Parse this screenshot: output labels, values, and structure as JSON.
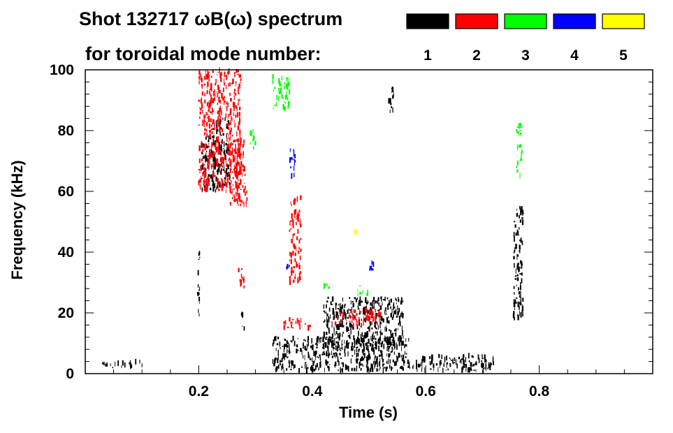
{
  "chart_data": {
    "type": "scatter",
    "title": "Shot 132717 ωB(ω) spectrum",
    "subtitle": "for toroidal mode number:",
    "xlabel": "Time (s)",
    "ylabel": "Frequency (kHz)",
    "xlim": [
      0.0,
      1.0
    ],
    "ylim": [
      0,
      100
    ],
    "x_ticks": [
      "0.2",
      "0.4",
      "0.6",
      "0.8"
    ],
    "x_tick_values": [
      0.2,
      0.4,
      0.6,
      0.8
    ],
    "y_ticks": [
      "0",
      "20",
      "40",
      "60",
      "80",
      "100"
    ],
    "y_tick_values": [
      0,
      20,
      40,
      60,
      80,
      100
    ],
    "grid": false,
    "legend_placement": "top-right",
    "legend": [
      {
        "label": "1",
        "color": "#000000"
      },
      {
        "label": "2",
        "color": "#ff0000"
      },
      {
        "label": "3",
        "color": "#00ff00"
      },
      {
        "label": "4",
        "color": "#0000ff"
      },
      {
        "label": "5",
        "color": "#ffff00"
      }
    ],
    "series": [
      {
        "mode": 1,
        "color": "#000000",
        "features": [
          {
            "t0": 0.205,
            "t1": 0.225,
            "f0": 60,
            "f1": 78
          },
          {
            "t0": 0.225,
            "t1": 0.255,
            "f0": 60,
            "f1": 84
          },
          {
            "t0": 0.198,
            "t1": 0.202,
            "f0": 17,
            "f1": 40
          },
          {
            "t0": 0.275,
            "t1": 0.282,
            "f0": 14,
            "f1": 20
          },
          {
            "t0": 0.33,
            "t1": 0.57,
            "f0": 1,
            "f1": 12
          },
          {
            "t0": 0.57,
            "t1": 0.72,
            "f0": 1,
            "f1": 6
          },
          {
            "t0": 0.42,
            "t1": 0.56,
            "f0": 8,
            "f1": 25
          },
          {
            "t0": 0.755,
            "t1": 0.772,
            "f0": 18,
            "f1": 55
          },
          {
            "t0": 0.03,
            "t1": 0.1,
            "f0": 2,
            "f1": 4
          },
          {
            "t0": 0.535,
            "t1": 0.545,
            "f0": 86,
            "f1": 94
          }
        ]
      },
      {
        "mode": 2,
        "color": "#ff0000",
        "features": [
          {
            "t0": 0.2,
            "t1": 0.275,
            "f0": 60,
            "f1": 100
          },
          {
            "t0": 0.255,
            "t1": 0.285,
            "f0": 55,
            "f1": 77
          },
          {
            "t0": 0.27,
            "t1": 0.28,
            "f0": 28,
            "f1": 36
          },
          {
            "t0": 0.36,
            "t1": 0.38,
            "f0": 30,
            "f1": 58
          },
          {
            "t0": 0.35,
            "t1": 0.4,
            "f0": 15,
            "f1": 18
          },
          {
            "t0": 0.44,
            "t1": 0.52,
            "f0": 16,
            "f1": 21
          }
        ]
      },
      {
        "mode": 3,
        "color": "#00ff00",
        "features": [
          {
            "t0": 0.33,
            "t1": 0.36,
            "f0": 87,
            "f1": 98
          },
          {
            "t0": 0.48,
            "t1": 0.5,
            "f0": 26,
            "f1": 29
          },
          {
            "t0": 0.76,
            "t1": 0.77,
            "f0": 65,
            "f1": 82
          },
          {
            "t0": 0.29,
            "t1": 0.3,
            "f0": 74,
            "f1": 80
          },
          {
            "t0": 0.42,
            "t1": 0.43,
            "f0": 28,
            "f1": 30
          }
        ]
      },
      {
        "mode": 4,
        "color": "#0000ff",
        "features": [
          {
            "t0": 0.36,
            "t1": 0.37,
            "f0": 65,
            "f1": 75
          },
          {
            "t0": 0.5,
            "t1": 0.51,
            "f0": 34,
            "f1": 37
          },
          {
            "t0": 0.355,
            "t1": 0.36,
            "f0": 34,
            "f1": 36
          }
        ]
      },
      {
        "mode": 5,
        "color": "#ffff00",
        "features": [
          {
            "t0": 0.475,
            "t1": 0.48,
            "f0": 46,
            "f1": 48
          }
        ]
      }
    ]
  }
}
